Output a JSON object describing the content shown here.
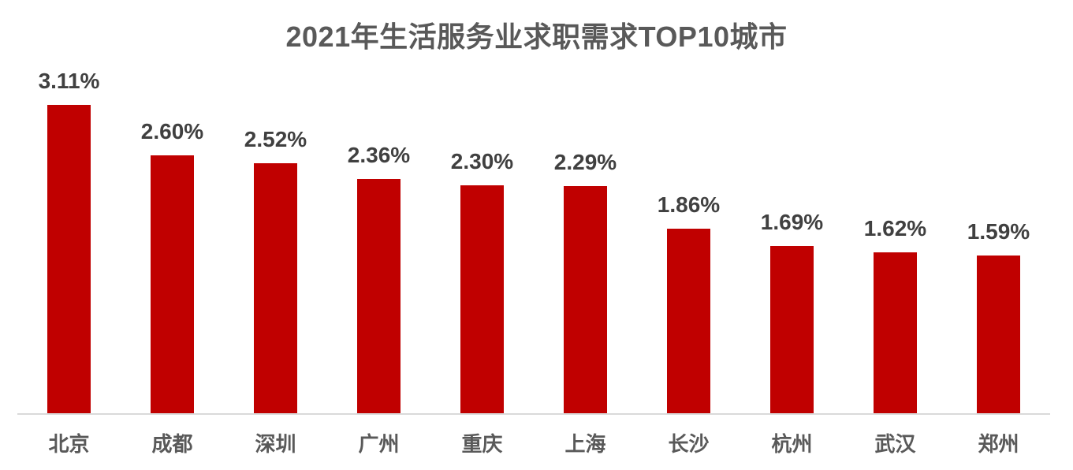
{
  "chart_data": {
    "type": "bar",
    "title": "2021年生活服务业求职需求TOP10城市",
    "categories": [
      "北京",
      "成都",
      "深圳",
      "广州",
      "重庆",
      "上海",
      "长沙",
      "杭州",
      "武汉",
      "郑州"
    ],
    "values": [
      3.11,
      2.6,
      2.52,
      2.36,
      2.3,
      2.29,
      1.86,
      1.69,
      1.62,
      1.59
    ],
    "labels": [
      "3.11%",
      "2.60%",
      "2.52%",
      "2.36%",
      "2.30%",
      "2.29%",
      "1.86%",
      "1.69%",
      "1.62%",
      "1.59%"
    ],
    "xlabel": "",
    "ylabel": "",
    "ylim": [
      0,
      3.5
    ],
    "grid": false,
    "legend": false,
    "y_axis_visible": false,
    "colors": {
      "bar": "#C00000",
      "value_label": "#404040",
      "category_label": "#595959",
      "title": "#595959",
      "axis_line": "#D9D9D9",
      "background": "#FFFFFF"
    }
  }
}
